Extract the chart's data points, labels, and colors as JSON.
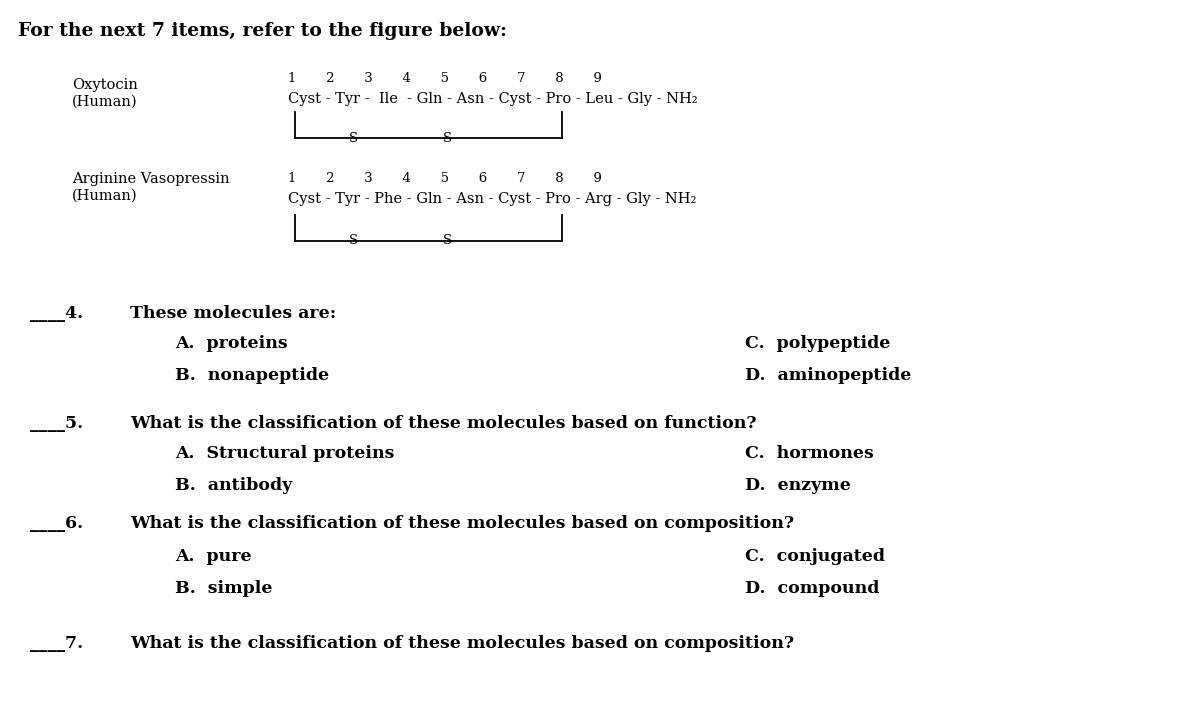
{
  "title": "For the next 7 items, refer to the figure below:",
  "background_color": "#ffffff",
  "title_fontsize": 13.5,
  "body_fontsize": 12.5,
  "small_fontsize": 10.5,
  "fig_width": 12.0,
  "fig_height": 7.15,
  "oxytocin_label": "Oxytocin\n(Human)",
  "oxytocin_numbers": "1      2      3      4      5      6      7      8      9",
  "oxytocin_sequence": "Cyst - Tyr -  Ile  - Gln - Asn - Cyst - Pro - Leu - Gly - NH₂",
  "avp_label": "Arginine Vasopressin\n(Human)",
  "avp_numbers": "1      2      3      4      5      6      7      8      9",
  "avp_sequence": "Cyst - Tyr - Phe - Gln - Asn - Cyst - Pro - Arg - Gly - NH₂",
  "questions": [
    {
      "number": "4.",
      "question": "These molecules are:",
      "options_left": [
        "A.  proteins",
        "B.  nonapeptide"
      ],
      "options_right": [
        "C.  polypeptide",
        "D.  aminopeptide"
      ]
    },
    {
      "number": "5.",
      "question": "What is the classification of these molecules based on function?",
      "options_left": [
        "A.  Structural proteins",
        "B.  antibody"
      ],
      "options_right": [
        "C.  hormones",
        "D.  enzyme"
      ]
    },
    {
      "number": "6.",
      "question": "What is the classification of these molecules based on composition?",
      "options_left": [
        "A.  pure",
        "B.  simple"
      ],
      "options_right": [
        "C.  conjugated",
        "D.  compound"
      ]
    },
    {
      "number": "7.",
      "question": "What is the classification of these molecules based on composition?",
      "options_left": [],
      "options_right": []
    }
  ]
}
